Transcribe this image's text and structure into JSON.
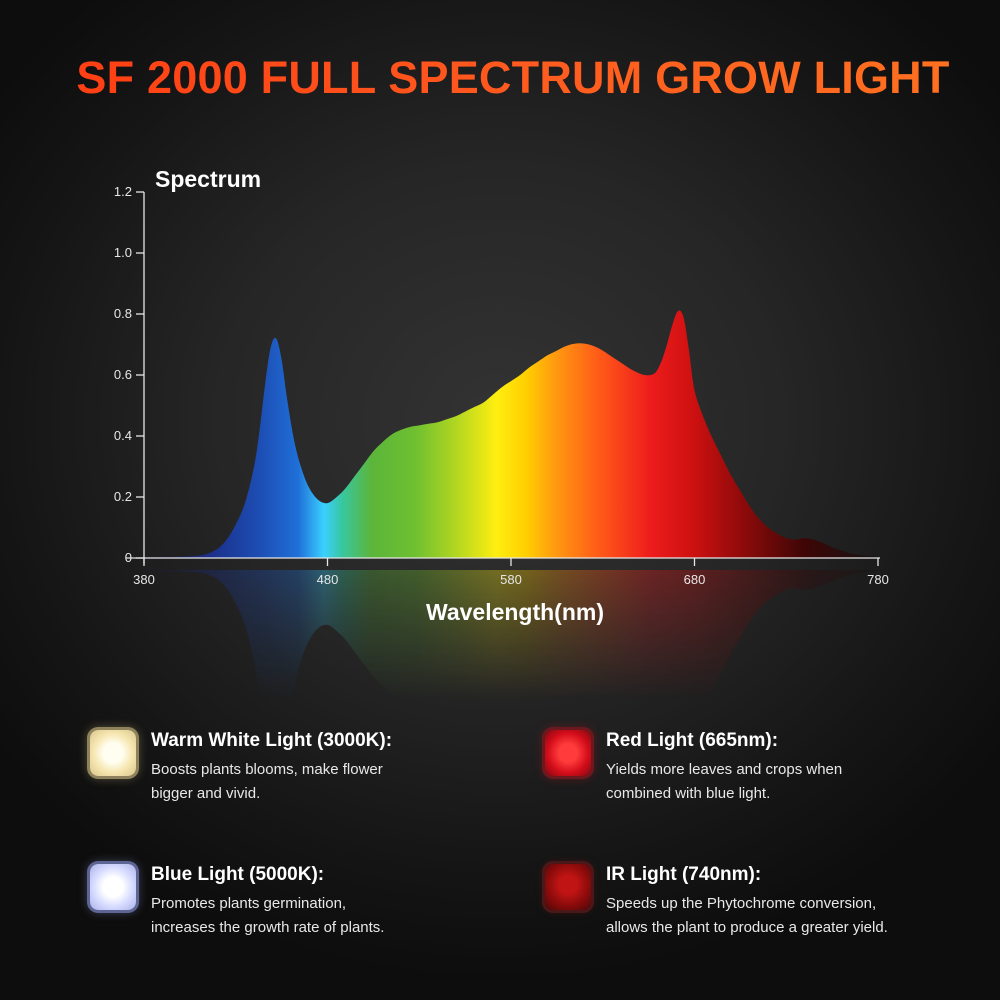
{
  "title": "SF 2000 FULL SPECTRUM GROW LIGHT",
  "chart_data": {
    "type": "area",
    "title": "Spectrum",
    "xlabel": "Wavelength(nm)",
    "ylabel": "",
    "xlim": [
      380,
      780
    ],
    "ylim": [
      0,
      1.2
    ],
    "x_ticks": [
      380,
      480,
      580,
      680,
      780
    ],
    "y_ticks": [
      0,
      0.2,
      0.4,
      0.6,
      0.8,
      1.0,
      1.2
    ],
    "y_tick_labels": [
      "0",
      "0.2",
      "0.4",
      "0.6",
      "0.8",
      "1.0",
      "1.2"
    ],
    "grid": false,
    "fill": "wavelength-color gradient",
    "series": [
      {
        "x": [
          380,
          390,
          400,
          410,
          415,
          420,
          425,
          430,
          435,
          440,
          443,
          446,
          449,
          452,
          455,
          458,
          462,
          466,
          470,
          475,
          480,
          485,
          490,
          495,
          500,
          505,
          510,
          515,
          520,
          525,
          530,
          535,
          540,
          545,
          550,
          555,
          560,
          565,
          570,
          575,
          580,
          585,
          590,
          595,
          600,
          605,
          610,
          615,
          620,
          625,
          630,
          635,
          640,
          645,
          650,
          653,
          656,
          659,
          662,
          665,
          668,
          671,
          674,
          677,
          680,
          685,
          690,
          695,
          700,
          705,
          710,
          715,
          720,
          725,
          730,
          735,
          740,
          745,
          750,
          755,
          760,
          765,
          770,
          775,
          780
        ],
        "values": [
          0.003,
          0.003,
          0.004,
          0.008,
          0.015,
          0.03,
          0.06,
          0.11,
          0.18,
          0.3,
          0.42,
          0.57,
          0.69,
          0.72,
          0.65,
          0.52,
          0.38,
          0.29,
          0.23,
          0.19,
          0.18,
          0.2,
          0.23,
          0.27,
          0.31,
          0.35,
          0.38,
          0.405,
          0.42,
          0.43,
          0.435,
          0.44,
          0.445,
          0.455,
          0.465,
          0.48,
          0.495,
          0.51,
          0.535,
          0.56,
          0.58,
          0.6,
          0.625,
          0.645,
          0.665,
          0.68,
          0.695,
          0.703,
          0.703,
          0.695,
          0.68,
          0.66,
          0.64,
          0.62,
          0.605,
          0.6,
          0.6,
          0.61,
          0.645,
          0.7,
          0.765,
          0.81,
          0.79,
          0.68,
          0.55,
          0.46,
          0.39,
          0.33,
          0.27,
          0.22,
          0.17,
          0.13,
          0.1,
          0.08,
          0.065,
          0.06,
          0.065,
          0.06,
          0.05,
          0.035,
          0.025,
          0.015,
          0.01,
          0.007,
          0.005
        ]
      }
    ]
  },
  "features": [
    {
      "icon": "warm-white-led-icon",
      "color": "#f6e6b0",
      "heading": "Warm White Light (3000K):",
      "line1": "Boosts plants blooms, make flower",
      "line2": "bigger and vivid."
    },
    {
      "icon": "red-led-icon",
      "color": "#d40d1a",
      "heading": "Red Light (665nm):",
      "line1": "Yields more leaves and crops when",
      "line2": "combined with blue light."
    },
    {
      "icon": "blue-led-icon",
      "color": "#d7dcff",
      "heading": "Blue Light (5000K):",
      "line1": "Promotes plants germination,",
      "line2": "increases the growth rate of plants."
    },
    {
      "icon": "ir-led-icon",
      "color": "#8a0b0b",
      "heading": "IR Light (740nm):",
      "line1": "Speeds up the Phytochrome conversion,",
      "line2": "allows the plant to produce a greater yield."
    }
  ]
}
